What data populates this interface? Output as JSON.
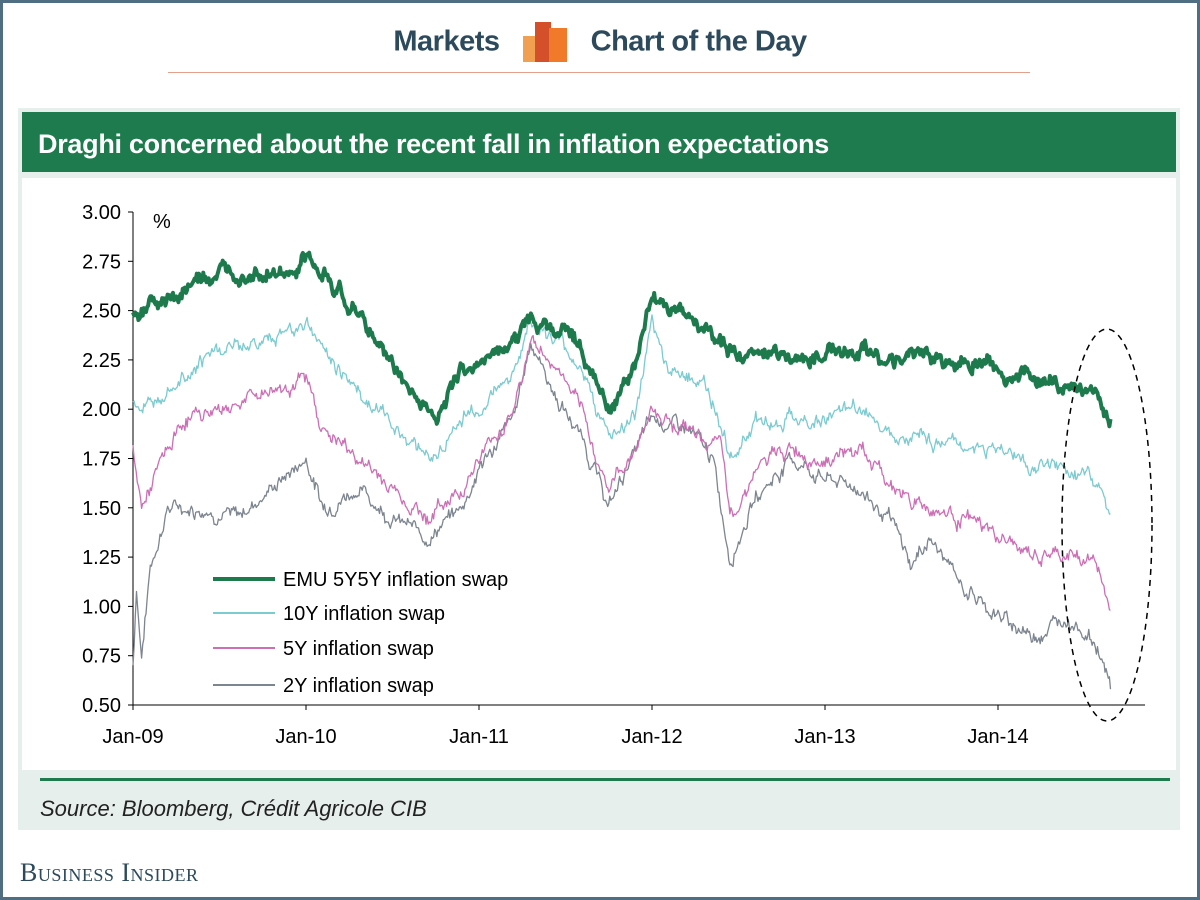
{
  "header": {
    "left": "Markets",
    "right": "Chart of the Day"
  },
  "source": "Source: Bloomberg, Crédit Agricole CIB",
  "brand": "Business Insider",
  "chart_data": {
    "type": "line",
    "title": "Draghi concerned about the recent fall in inflation expectations",
    "ylabel": "%",
    "xlabel": "",
    "ylim": [
      0.5,
      3.0
    ],
    "xlim": [
      2009.0,
      2014.85
    ],
    "yticks": [
      "3.00",
      "2.75",
      "2.50",
      "2.25",
      "2.00",
      "1.75",
      "1.50",
      "1.25",
      "1.00",
      "0.75",
      "0.50"
    ],
    "xticks": [
      {
        "label": "Jan-09",
        "x": 2009
      },
      {
        "label": "Jan-10",
        "x": 2010
      },
      {
        "label": "Jan-11",
        "x": 2011
      },
      {
        "label": "Jan-12",
        "x": 2012
      },
      {
        "label": "Jan-13",
        "x": 2013
      },
      {
        "label": "Jan-14",
        "x": 2014
      }
    ],
    "legend_position": "bottom-left",
    "series": [
      {
        "name": "EMU 5Y5Y inflation swap",
        "color": "#1d7a4c",
        "x": [
          2009.0,
          2009.2,
          2009.4,
          2009.7,
          2009.9,
          2010.0,
          2010.2,
          2010.4,
          2010.6,
          2010.75,
          2010.9,
          2011.0,
          2011.2,
          2011.3,
          2011.5,
          2011.6,
          2011.75,
          2011.9,
          2012.0,
          2012.1,
          2012.3,
          2012.5,
          2012.7,
          2012.9,
          2013.0,
          2013.2,
          2013.4,
          2013.6,
          2013.9,
          2014.0,
          2014.2,
          2014.4,
          2014.5,
          2014.6,
          2014.65
        ],
        "values": [
          2.5,
          2.55,
          2.65,
          2.72,
          2.65,
          2.75,
          2.6,
          2.35,
          2.1,
          1.95,
          2.2,
          2.25,
          2.35,
          2.45,
          2.4,
          2.3,
          2.0,
          2.2,
          2.6,
          2.5,
          2.4,
          2.25,
          2.3,
          2.25,
          2.3,
          2.3,
          2.25,
          2.25,
          2.25,
          2.2,
          2.15,
          2.1,
          2.1,
          2.05,
          1.95
        ]
      },
      {
        "name": "10Y inflation swap",
        "color": "#7ccbd0",
        "x": [
          2009.0,
          2009.1,
          2009.2,
          2009.5,
          2009.8,
          2010.0,
          2010.1,
          2010.4,
          2010.6,
          2010.75,
          2010.9,
          2011.0,
          2011.2,
          2011.3,
          2011.5,
          2011.6,
          2011.75,
          2011.9,
          2012.0,
          2012.1,
          2012.3,
          2012.45,
          2012.6,
          2012.8,
          2013.0,
          2013.2,
          2013.4,
          2013.6,
          2013.9,
          2014.0,
          2014.2,
          2014.4,
          2014.55,
          2014.65
        ],
        "values": [
          2.05,
          2.0,
          2.15,
          2.3,
          2.35,
          2.45,
          2.3,
          2.0,
          1.85,
          1.75,
          1.95,
          2.0,
          2.2,
          2.45,
          2.3,
          2.2,
          1.85,
          1.95,
          2.4,
          2.2,
          2.15,
          1.75,
          1.95,
          1.95,
          1.95,
          2.0,
          1.9,
          1.85,
          1.8,
          1.8,
          1.72,
          1.68,
          1.65,
          1.47
        ]
      },
      {
        "name": "5Y inflation swap",
        "color": "#cc6fb5",
        "x": [
          2009.0,
          2009.05,
          2009.15,
          2009.3,
          2009.5,
          2009.8,
          2010.0,
          2010.1,
          2010.3,
          2010.5,
          2010.7,
          2010.9,
          2011.0,
          2011.2,
          2011.3,
          2011.5,
          2011.6,
          2011.75,
          2011.9,
          2012.0,
          2012.2,
          2012.4,
          2012.45,
          2012.6,
          2012.8,
          2013.0,
          2013.2,
          2013.4,
          2013.6,
          2013.8,
          2014.0,
          2014.2,
          2014.4,
          2014.55,
          2014.65
        ],
        "values": [
          1.8,
          1.5,
          1.7,
          1.95,
          2.0,
          2.1,
          2.15,
          1.9,
          1.75,
          1.6,
          1.45,
          1.6,
          1.75,
          2.0,
          2.35,
          2.15,
          1.95,
          1.6,
          1.8,
          2.0,
          1.9,
          1.8,
          1.45,
          1.7,
          1.8,
          1.75,
          1.8,
          1.6,
          1.5,
          1.45,
          1.35,
          1.25,
          1.25,
          1.25,
          0.98
        ]
      },
      {
        "name": "2Y inflation swap",
        "color": "#7d8590",
        "x": [
          2009.0,
          2009.02,
          2009.05,
          2009.1,
          2009.2,
          2009.4,
          2009.6,
          2009.8,
          2010.0,
          2010.1,
          2010.3,
          2010.5,
          2010.7,
          2010.9,
          2011.0,
          2011.2,
          2011.3,
          2011.45,
          2011.6,
          2011.75,
          2011.85,
          2012.0,
          2012.2,
          2012.35,
          2012.45,
          2012.6,
          2012.8,
          2013.0,
          2013.2,
          2013.4,
          2013.5,
          2013.6,
          2013.8,
          2014.0,
          2014.2,
          2014.4,
          2014.5,
          2014.6,
          2014.65
        ],
        "values": [
          0.7,
          1.1,
          0.75,
          1.2,
          1.5,
          1.5,
          1.45,
          1.6,
          1.75,
          1.5,
          1.6,
          1.45,
          1.35,
          1.5,
          1.7,
          1.95,
          2.35,
          2.05,
          1.85,
          1.5,
          1.7,
          1.95,
          1.9,
          1.75,
          1.25,
          1.55,
          1.75,
          1.65,
          1.6,
          1.4,
          1.2,
          1.35,
          1.1,
          0.95,
          0.85,
          0.95,
          0.88,
          0.75,
          0.58
        ]
      }
    ]
  }
}
